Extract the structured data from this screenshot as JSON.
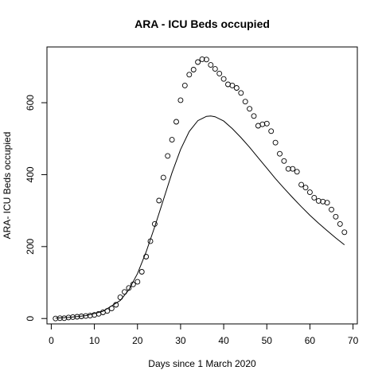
{
  "chart_data": {
    "type": "scatter",
    "title": "ARA - ICU Beds occupied",
    "xlabel": "Days since 1 March 2020",
    "ylabel": "ARA- ICU Beds occupied",
    "xlim": [
      -1,
      71
    ],
    "ylim": [
      -15,
      755
    ],
    "x_ticks": [
      0,
      10,
      20,
      30,
      40,
      50,
      60,
      70
    ],
    "y_ticks": [
      0,
      200,
      400,
      600
    ],
    "grid": false,
    "legend": "none",
    "series": [
      {
        "kind": "points",
        "marker": "open-circle",
        "x": [
          1,
          2,
          3,
          4,
          5,
          6,
          7,
          8,
          9,
          10,
          11,
          12,
          13,
          14,
          15,
          16,
          17,
          18,
          19,
          20,
          21,
          22,
          23,
          24,
          25,
          26,
          27,
          28,
          29,
          30,
          31,
          32,
          33,
          34,
          35,
          36,
          37,
          38,
          39,
          40,
          41,
          42,
          43,
          44,
          45,
          46,
          47,
          48,
          49,
          50,
          51,
          52,
          53,
          54,
          55,
          56,
          57,
          58,
          59,
          60,
          61,
          62,
          63,
          64,
          65,
          66,
          67,
          68
        ],
        "y": [
          0,
          1,
          1,
          3,
          4,
          5,
          6,
          7,
          8,
          10,
          13,
          17,
          21,
          28,
          38,
          59,
          74,
          85,
          95,
          102,
          130,
          172,
          215,
          263,
          328,
          392,
          452,
          497,
          547,
          607,
          648,
          678,
          692,
          713,
          721,
          720,
          705,
          694,
          681,
          666,
          651,
          648,
          641,
          627,
          603,
          583,
          563,
          536,
          540,
          542,
          521,
          489,
          458,
          438,
          416,
          416,
          408,
          372,
          364,
          351,
          336,
          327,
          325,
          322,
          303,
          283,
          263,
          240
        ]
      },
      {
        "kind": "line",
        "x": [
          1,
          4,
          8,
          12,
          16,
          18,
          20,
          22,
          24,
          26,
          28,
          30,
          32,
          34,
          36,
          37,
          38,
          40,
          42,
          44,
          46,
          48,
          50,
          52,
          54,
          56,
          58,
          60,
          62,
          64,
          66,
          68
        ],
        "y": [
          1,
          3,
          8,
          20,
          50,
          80,
          125,
          185,
          255,
          330,
          405,
          470,
          520,
          550,
          562,
          563,
          561,
          549,
          528,
          503,
          476,
          447,
          418,
          389,
          362,
          336,
          311,
          287,
          265,
          244,
          224,
          205
        ]
      }
    ]
  }
}
